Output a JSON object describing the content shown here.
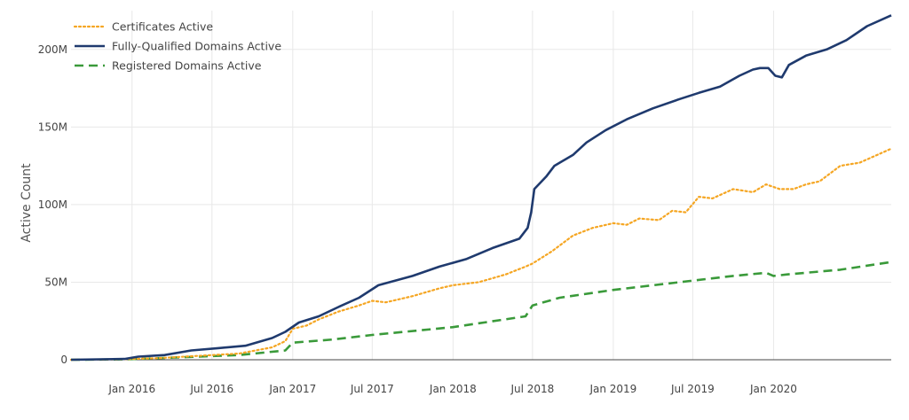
{
  "chart_data": {
    "type": "line",
    "title": "",
    "xlabel": "",
    "ylabel": "Active Count",
    "x_ticks": [
      "Jan 2016",
      "Jul 2016",
      "Jan 2017",
      "Jul 2017",
      "Jan 2018",
      "Jul 2018",
      "Jan 2019",
      "Jul 2019",
      "Jan 2020"
    ],
    "y_ticks": [
      "0",
      "50M",
      "100M",
      "150M",
      "200M"
    ],
    "xlim": [
      "2015-08-15",
      "2020-09-25"
    ],
    "ylim": [
      0,
      225000000
    ],
    "grid": true,
    "legend_position": "top-left",
    "series": [
      {
        "name": "Certificates Active",
        "color": "#f5a623",
        "dash": "dotted",
        "points": [
          [
            "2015-08-15",
            0
          ],
          [
            "2015-12-01",
            200000
          ],
          [
            "2016-03-01",
            1000000
          ],
          [
            "2016-06-01",
            2500000
          ],
          [
            "2016-09-01",
            4000000
          ],
          [
            "2016-11-15",
            8000000
          ],
          [
            "2016-12-15",
            12000000
          ],
          [
            "2017-01-01",
            20000000
          ],
          [
            "2017-02-01",
            22000000
          ],
          [
            "2017-03-01",
            26000000
          ],
          [
            "2017-04-15",
            31000000
          ],
          [
            "2017-06-01",
            35000000
          ],
          [
            "2017-07-01",
            38000000
          ],
          [
            "2017-08-01",
            37000000
          ],
          [
            "2017-10-01",
            41000000
          ],
          [
            "2017-12-01",
            46000000
          ],
          [
            "2018-01-01",
            48000000
          ],
          [
            "2018-03-01",
            50000000
          ],
          [
            "2018-05-01",
            55000000
          ],
          [
            "2018-06-15",
            60000000
          ],
          [
            "2018-07-01",
            62000000
          ],
          [
            "2018-08-15",
            70000000
          ],
          [
            "2018-10-01",
            80000000
          ],
          [
            "2018-11-15",
            85000000
          ],
          [
            "2019-01-01",
            88000000
          ],
          [
            "2019-02-01",
            87000000
          ],
          [
            "2019-03-01",
            91000000
          ],
          [
            "2019-04-15",
            90000000
          ],
          [
            "2019-05-15",
            96000000
          ],
          [
            "2019-06-15",
            95000000
          ],
          [
            "2019-07-15",
            105000000
          ],
          [
            "2019-08-15",
            104000000
          ],
          [
            "2019-10-01",
            110000000
          ],
          [
            "2019-11-15",
            108000000
          ],
          [
            "2019-12-15",
            113000000
          ],
          [
            "2020-01-15",
            110000000
          ],
          [
            "2020-02-15",
            110000000
          ],
          [
            "2020-03-15",
            113000000
          ],
          [
            "2020-04-15",
            115000000
          ],
          [
            "2020-06-01",
            125000000
          ],
          [
            "2020-07-15",
            127000000
          ],
          [
            "2020-09-25",
            136000000
          ]
        ]
      },
      {
        "name": "Fully-Qualified Domains Active",
        "color": "#1f3a6e",
        "dash": "solid",
        "points": [
          [
            "2015-08-15",
            0
          ],
          [
            "2015-12-15",
            500000
          ],
          [
            "2016-01-15",
            2000000
          ],
          [
            "2016-03-15",
            3000000
          ],
          [
            "2016-05-15",
            6000000
          ],
          [
            "2016-07-15",
            7500000
          ],
          [
            "2016-09-15",
            9000000
          ],
          [
            "2016-11-15",
            14000000
          ],
          [
            "2016-12-15",
            18000000
          ],
          [
            "2017-01-15",
            24000000
          ],
          [
            "2017-03-01",
            28000000
          ],
          [
            "2017-04-15",
            34000000
          ],
          [
            "2017-06-01",
            40000000
          ],
          [
            "2017-07-15",
            48000000
          ],
          [
            "2017-10-01",
            54000000
          ],
          [
            "2017-12-01",
            60000000
          ],
          [
            "2018-02-01",
            65000000
          ],
          [
            "2018-04-01",
            72000000
          ],
          [
            "2018-06-01",
            78000000
          ],
          [
            "2018-06-20",
            85000000
          ],
          [
            "2018-06-28",
            95000000
          ],
          [
            "2018-07-05",
            110000000
          ],
          [
            "2018-08-01",
            118000000
          ],
          [
            "2018-08-20",
            125000000
          ],
          [
            "2018-10-01",
            132000000
          ],
          [
            "2018-11-01",
            140000000
          ],
          [
            "2018-12-15",
            148000000
          ],
          [
            "2019-02-01",
            155000000
          ],
          [
            "2019-04-01",
            162000000
          ],
          [
            "2019-06-01",
            168000000
          ],
          [
            "2019-07-15",
            172000000
          ],
          [
            "2019-09-01",
            176000000
          ],
          [
            "2019-10-15",
            183000000
          ],
          [
            "2019-11-15",
            187000000
          ],
          [
            "2019-12-01",
            188000000
          ],
          [
            "2019-12-20",
            188000000
          ],
          [
            "2020-01-05",
            183000000
          ],
          [
            "2020-01-20",
            182000000
          ],
          [
            "2020-02-05",
            190000000
          ],
          [
            "2020-03-15",
            196000000
          ],
          [
            "2020-05-01",
            200000000
          ],
          [
            "2020-06-15",
            206000000
          ],
          [
            "2020-08-01",
            215000000
          ],
          [
            "2020-09-25",
            222000000
          ]
        ]
      },
      {
        "name": "Registered Domains Active",
        "color": "#3a9a3a",
        "dash": "dashed",
        "points": [
          [
            "2015-08-15",
            0
          ],
          [
            "2015-12-15",
            200000
          ],
          [
            "2016-06-01",
            2000000
          ],
          [
            "2016-09-01",
            3000000
          ],
          [
            "2016-12-15",
            6000000
          ],
          [
            "2017-01-01",
            11000000
          ],
          [
            "2017-04-01",
            13000000
          ],
          [
            "2017-07-01",
            16000000
          ],
          [
            "2018-01-01",
            21000000
          ],
          [
            "2018-06-15",
            28000000
          ],
          [
            "2018-07-01",
            35000000
          ],
          [
            "2018-09-01",
            40000000
          ],
          [
            "2019-01-01",
            45000000
          ],
          [
            "2019-07-01",
            51000000
          ],
          [
            "2019-10-01",
            54000000
          ],
          [
            "2019-12-15",
            56000000
          ],
          [
            "2020-01-01",
            54000000
          ],
          [
            "2020-02-01",
            55000000
          ],
          [
            "2020-06-01",
            58000000
          ],
          [
            "2020-09-25",
            63000000
          ]
        ]
      }
    ]
  }
}
